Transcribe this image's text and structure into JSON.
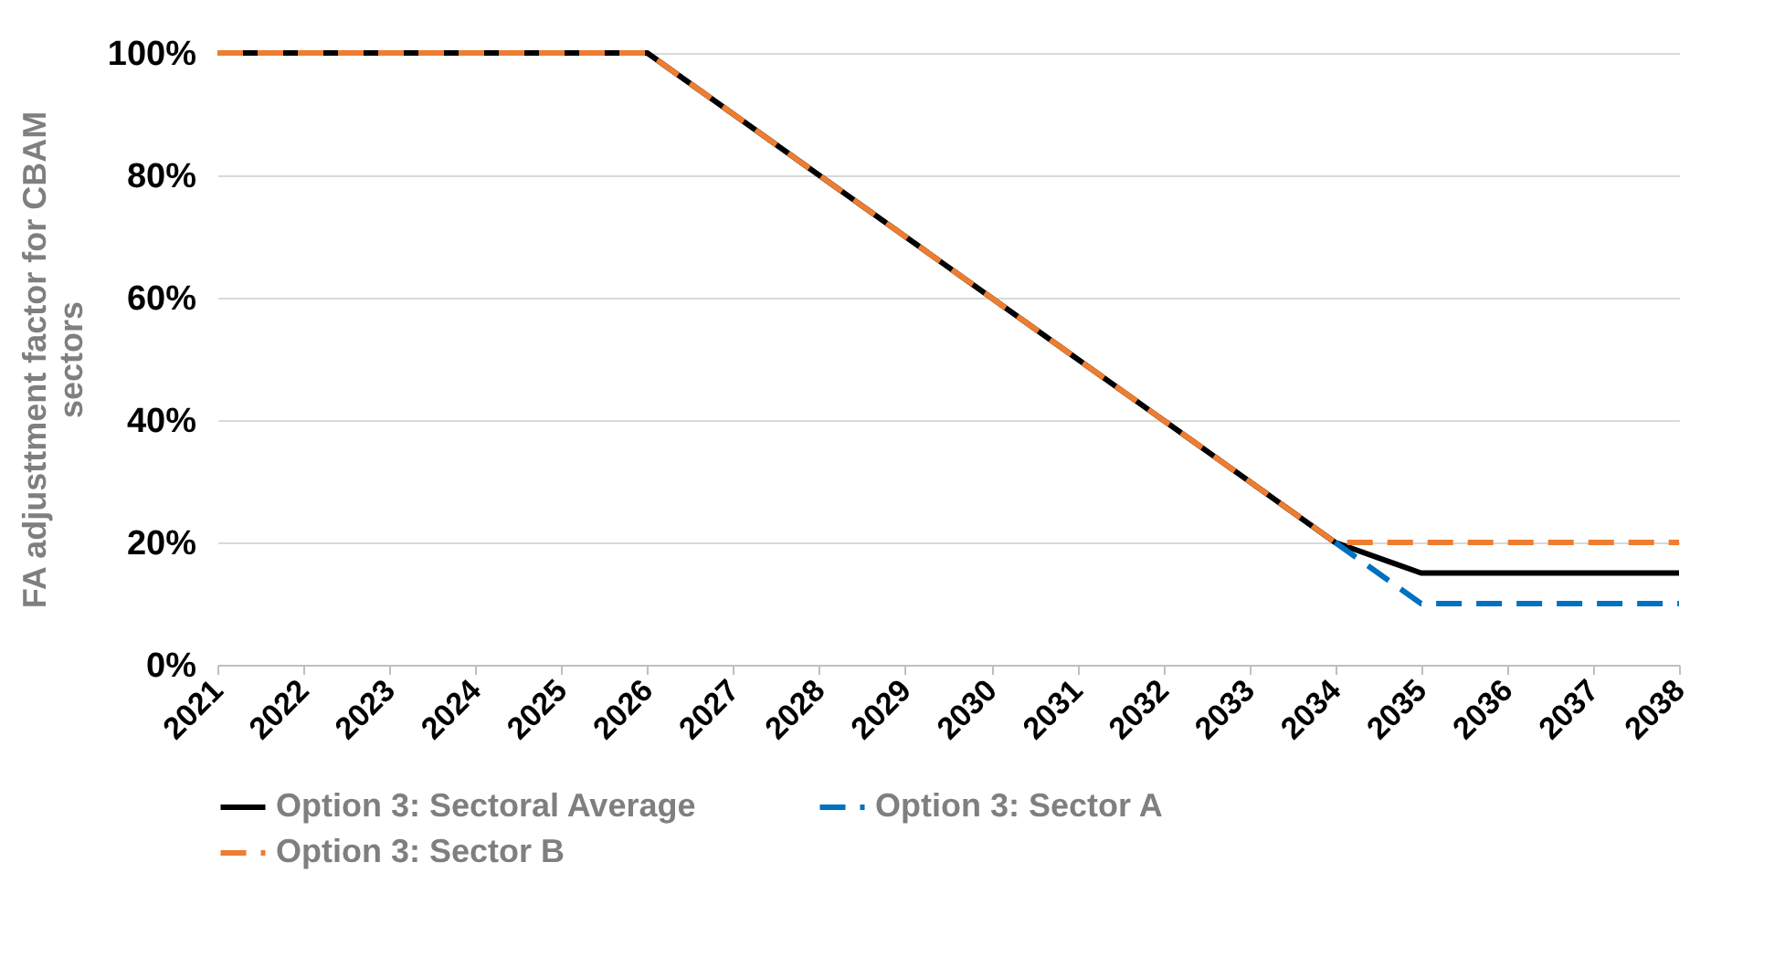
{
  "chart_data": {
    "type": "line",
    "ylabel": "FA adjusttment factor for CBAM sectors",
    "categories": [
      "2021",
      "2022",
      "2023",
      "2024",
      "2025",
      "2026",
      "2027",
      "2028",
      "2029",
      "2030",
      "2031",
      "2032",
      "2033",
      "2034",
      "2035",
      "2036",
      "2037",
      "2038"
    ],
    "series": [
      {
        "name": "Option 3: Sectoral Average",
        "color": "#000000",
        "line_style": "solid",
        "values": [
          100,
          100,
          100,
          100,
          100,
          100,
          90,
          80,
          70,
          60,
          50,
          40,
          30,
          20,
          15,
          15,
          15,
          15
        ]
      },
      {
        "name": "Option 3: Sector A",
        "color": "#0070c0",
        "line_style": "dashed",
        "values": [
          null,
          null,
          null,
          null,
          null,
          null,
          null,
          null,
          null,
          null,
          null,
          null,
          null,
          20,
          10,
          10,
          10,
          10
        ]
      },
      {
        "name": "Option 3: Sector B",
        "color": "#ed7d31",
        "line_style": "dashed",
        "values": [
          100,
          100,
          100,
          100,
          100,
          100,
          90,
          80,
          70,
          60,
          50,
          40,
          30,
          20,
          20,
          20,
          20,
          20
        ]
      }
    ],
    "ylim": [
      0,
      100
    ],
    "yticks": [
      {
        "value": 0,
        "label": "0%"
      },
      {
        "value": 20,
        "label": "20%"
      },
      {
        "value": 40,
        "label": "40%"
      },
      {
        "value": 60,
        "label": "60%"
      },
      {
        "value": 80,
        "label": "80%"
      },
      {
        "value": 100,
        "label": "100%"
      }
    ],
    "grid": "y",
    "legend": "bottom",
    "marker": "none"
  }
}
